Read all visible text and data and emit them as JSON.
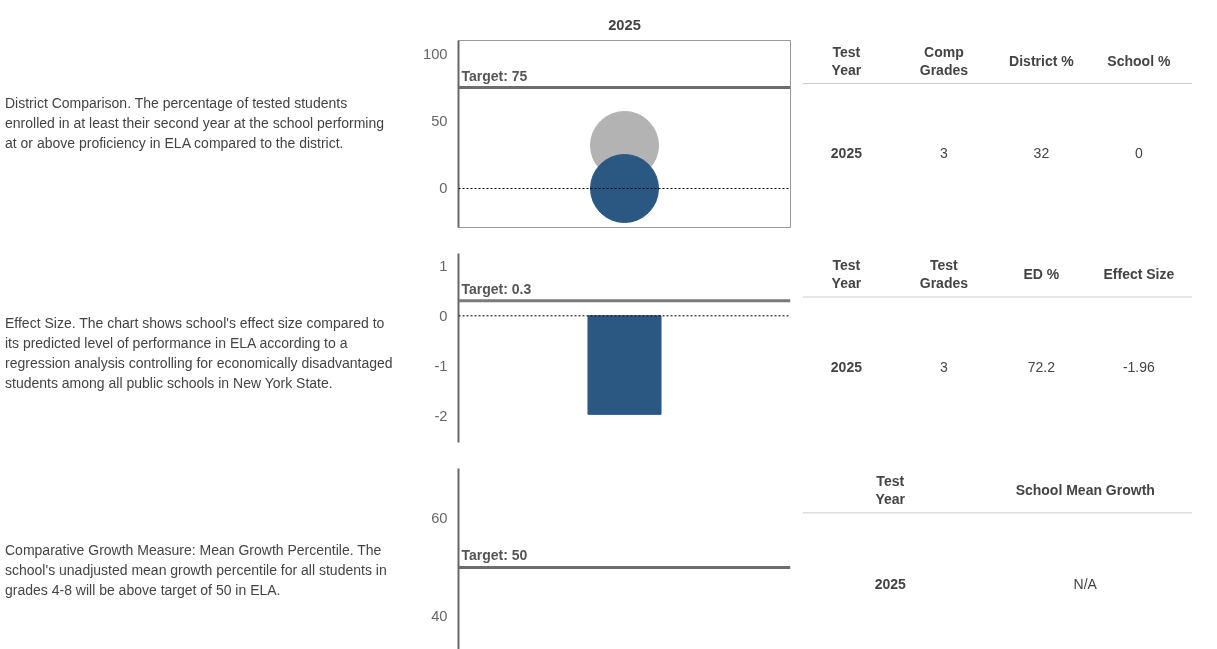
{
  "chart_data": [
    {
      "type": "scatter",
      "categories": [
        "2025"
      ],
      "marker": "circle",
      "series": [
        {
          "color": "#b3b3b3",
          "values": [
            32
          ]
        },
        {
          "color": "#2b5783",
          "values": [
            0
          ]
        }
      ],
      "ylim": [
        -29,
        110
      ],
      "yticks": [
        0,
        50,
        100
      ],
      "ref_lines": [
        {
          "axis": "y",
          "value": 75,
          "label": "Target: 75",
          "color": "#6d6d6d",
          "line_style": "solid"
        },
        {
          "axis": "y",
          "value": 0,
          "label": null,
          "color": "#000000",
          "line_style": "dashed"
        }
      ],
      "annotations": [
        "District Comparison. The percentage of tested students enrolled in at least their second year at the school performing at or above proficiency in ELA compared to the district.",
        "Test Year",
        "Comp Grades",
        "District %",
        "School %",
        "2025",
        "3",
        "32",
        "0"
      ]
    },
    {
      "type": "bar",
      "categories": [
        null
      ],
      "tick_labels": "y",
      "series": [
        {
          "color": "#2b5783",
          "values": [
            -1.96
          ]
        }
      ],
      "ylim": [
        -2.52,
        1.24
      ],
      "yticks": [
        -2,
        -1,
        0,
        1
      ],
      "ref_lines": [
        {
          "axis": "y",
          "value": 0.3,
          "label": "Target: 0.3",
          "color": "#7a7a7a",
          "line_style": "solid"
        },
        {
          "axis": "y",
          "value": 0,
          "label": null,
          "color": "#000000",
          "line_style": "dashed"
        }
      ],
      "annotations": [
        "Effect Size. The chart shows school's effect size compared to its predicted level of performance in ELA according to a regression analysis controlling for economically disadvantaged students among all public schools in New York State.",
        "Test Year",
        "Test Grades",
        "ED %",
        "Effect Size",
        "2025",
        "3",
        "72.2",
        "-1.96"
      ]
    },
    {
      "type": "scatter",
      "categories": [
        null
      ],
      "tick_labels": "y",
      "series": [
        {
          "values": [
            null
          ]
        }
      ],
      "ylim": [
        30.8,
        70.2
      ],
      "yticks": [
        40,
        60
      ],
      "ref_lines": [
        {
          "axis": "y",
          "value": 50,
          "label": "Target: 50",
          "color": "#6d6d6d",
          "line_style": "solid"
        }
      ],
      "annotations": [
        "Comparative Growth Measure: Mean Growth Percentile. The school's unadjusted mean growth percentile for all students in grades 4-8 will be above target of 50 in ELA.",
        "Test Year",
        "School Mean Growth",
        "2025",
        "N/A"
      ]
    }
  ]
}
